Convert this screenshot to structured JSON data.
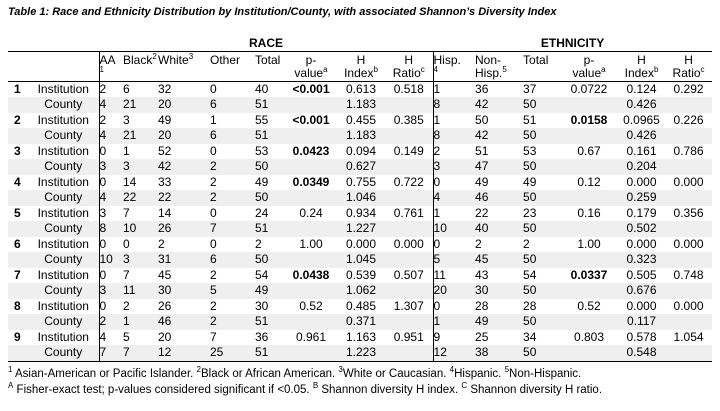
{
  "title": "Table 1: Race and Ethnicity Distribution by Institution/County, with associated Shannon’s Diversity Index",
  "table": {
    "groups": {
      "race": "RACE",
      "ethnicity": "ETHNICITY"
    },
    "headers": [
      {
        "l1": "AA",
        "s2": "1"
      },
      {
        "l1": "Black",
        "s1": "2"
      },
      {
        "l1": "White",
        "s1": "3"
      },
      {
        "l1": "Other"
      },
      {
        "l1": "Total"
      },
      {
        "l1": "p-",
        "l2": "value",
        "s2": "a"
      },
      {
        "l1": "H",
        "l2": "Index",
        "s2": "b"
      },
      {
        "l1": "H",
        "l2": "Ratio",
        "s2": "c"
      },
      {
        "l1": "Hisp.",
        "s2": "4"
      },
      {
        "l1": "Non-",
        "l2": "Hisp.",
        "s2": "5"
      },
      {
        "l1": "Total"
      },
      {
        "l1": "p-",
        "l2": "value",
        "s2": "a"
      },
      {
        "l1": "H",
        "l2": "Index",
        "s2": "b"
      },
      {
        "l1": "H",
        "l2": "Ratio",
        "s2": "c"
      }
    ],
    "rows": [
      {
        "num": "1",
        "label": "Institution",
        "shaded": false,
        "sig": [
          5
        ],
        "cells": [
          "2",
          "6",
          "32",
          "0",
          "40",
          "<0.001",
          "0.613",
          "0.518",
          "1",
          "36",
          "37",
          "0.0722",
          "0.124",
          "0.292"
        ]
      },
      {
        "num": "",
        "label": "County",
        "shaded": true,
        "sig": [],
        "cells": [
          "4",
          "21",
          "20",
          "6",
          "51",
          "",
          "1.183",
          "",
          "8",
          "42",
          "50",
          "",
          "0.426",
          ""
        ]
      },
      {
        "num": "2",
        "label": "Institution",
        "shaded": false,
        "sig": [
          5,
          11
        ],
        "cells": [
          "2",
          "3",
          "49",
          "1",
          "55",
          "<0.001",
          "0.455",
          "0.385",
          "1",
          "50",
          "51",
          "0.0158",
          "0.0965",
          "0.226"
        ]
      },
      {
        "num": "",
        "label": "County",
        "shaded": true,
        "sig": [],
        "cells": [
          "4",
          "21",
          "20",
          "6",
          "51",
          "",
          "1.183",
          "",
          "8",
          "42",
          "50",
          "",
          "0.426",
          ""
        ]
      },
      {
        "num": "3",
        "label": "Institution",
        "shaded": false,
        "sig": [
          5
        ],
        "cells": [
          "0",
          "1",
          "52",
          "0",
          "53",
          "0.0423",
          "0.094",
          "0.149",
          "2",
          "51",
          "53",
          "0.67",
          "0.161",
          "0.786"
        ]
      },
      {
        "num": "",
        "label": "County",
        "shaded": true,
        "sig": [],
        "cells": [
          "3",
          "3",
          "42",
          "2",
          "50",
          "",
          "0.627",
          "",
          "3",
          "47",
          "50",
          "",
          "0.204",
          ""
        ]
      },
      {
        "num": "4",
        "label": "Institution",
        "shaded": false,
        "sig": [
          5
        ],
        "cells": [
          "0",
          "14",
          "33",
          "2",
          "49",
          "0.0349",
          "0.755",
          "0.722",
          "0",
          "49",
          "49",
          "0.12",
          "0.000",
          "0.000"
        ]
      },
      {
        "num": "",
        "label": "County",
        "shaded": true,
        "sig": [],
        "cells": [
          "4",
          "22",
          "22",
          "2",
          "50",
          "",
          "1.046",
          "",
          "4",
          "46",
          "50",
          "",
          "0.259",
          ""
        ]
      },
      {
        "num": "5",
        "label": "Institution",
        "shaded": false,
        "sig": [],
        "cells": [
          "3",
          "7",
          "14",
          "0",
          "24",
          "0.24",
          "0.934",
          "0.761",
          "1",
          "22",
          "23",
          "0.16",
          "0.179",
          "0.356"
        ]
      },
      {
        "num": "",
        "label": "County",
        "shaded": true,
        "sig": [],
        "cells": [
          "8",
          "10",
          "26",
          "7",
          "51",
          "",
          "1.227",
          "",
          "10",
          "40",
          "50",
          "",
          "0.502",
          ""
        ]
      },
      {
        "num": "6",
        "label": "Institution",
        "shaded": false,
        "sig": [],
        "cells": [
          "0",
          "0",
          "2",
          "0",
          "2",
          "1.00",
          "0.000",
          "0.000",
          "0",
          "2",
          "2",
          "1.00",
          "0.000",
          "0.000"
        ]
      },
      {
        "num": "",
        "label": "County",
        "shaded": true,
        "sig": [],
        "cells": [
          "10",
          "3",
          "31",
          "6",
          "50",
          "",
          "1.045",
          "",
          "5",
          "45",
          "50",
          "",
          "0.323",
          ""
        ]
      },
      {
        "num": "7",
        "label": "Institution",
        "shaded": false,
        "sig": [
          5,
          11
        ],
        "cells": [
          "0",
          "7",
          "45",
          "2",
          "54",
          "0.0438",
          "0.539",
          "0.507",
          "11",
          "43",
          "54",
          "0.0337",
          "0.505",
          "0.748"
        ]
      },
      {
        "num": "",
        "label": "County",
        "shaded": true,
        "sig": [],
        "cells": [
          "3",
          "11",
          "30",
          "5",
          "49",
          "",
          "1.062",
          "",
          "20",
          "30",
          "50",
          "",
          "0.676",
          ""
        ]
      },
      {
        "num": "8",
        "label": "Institution",
        "shaded": false,
        "sig": [],
        "cells": [
          "0",
          "2",
          "26",
          "2",
          "30",
          "0.52",
          "0.485",
          "1.307",
          "0",
          "28",
          "28",
          "0.52",
          "0.000",
          "0.000"
        ]
      },
      {
        "num": "",
        "label": "County",
        "shaded": true,
        "sig": [],
        "cells": [
          "2",
          "1",
          "46",
          "2",
          "51",
          "",
          "0.371",
          "",
          "1",
          "49",
          "50",
          "",
          "0.117",
          ""
        ]
      },
      {
        "num": "9",
        "label": "Institution",
        "shaded": false,
        "sig": [],
        "cells": [
          "4",
          "5",
          "20",
          "7",
          "36",
          "0.961",
          "1.163",
          "0.951",
          "9",
          "25",
          "34",
          "0.803",
          "0.578",
          "1.054"
        ]
      },
      {
        "num": "",
        "label": "County",
        "shaded": true,
        "sig": [],
        "cells": [
          "7",
          "7",
          "12",
          "25",
          "51",
          "",
          "1.223",
          "",
          "12",
          "38",
          "50",
          "",
          "0.548",
          ""
        ]
      }
    ]
  },
  "footnotes": [
    {
      "segments": [
        {
          "sup": "1",
          "text": " Asian-American or Pacific Islander. "
        },
        {
          "sup": "2",
          "text": "Black or African American. "
        },
        {
          "sup": "3",
          "text": "White or Caucasian. "
        },
        {
          "sup": "4",
          "text": "Hispanic. "
        },
        {
          "sup": "5",
          "text": "Non-Hispanic."
        }
      ]
    },
    {
      "segments": [
        {
          "sup": "A",
          "text": " Fisher-exact test; p-values considered significant if <0.05. "
        },
        {
          "sup": "B",
          "text": " Shannon diversity H index. "
        },
        {
          "sup": "C",
          "text": " Shannon diversity H ratio."
        }
      ]
    }
  ]
}
